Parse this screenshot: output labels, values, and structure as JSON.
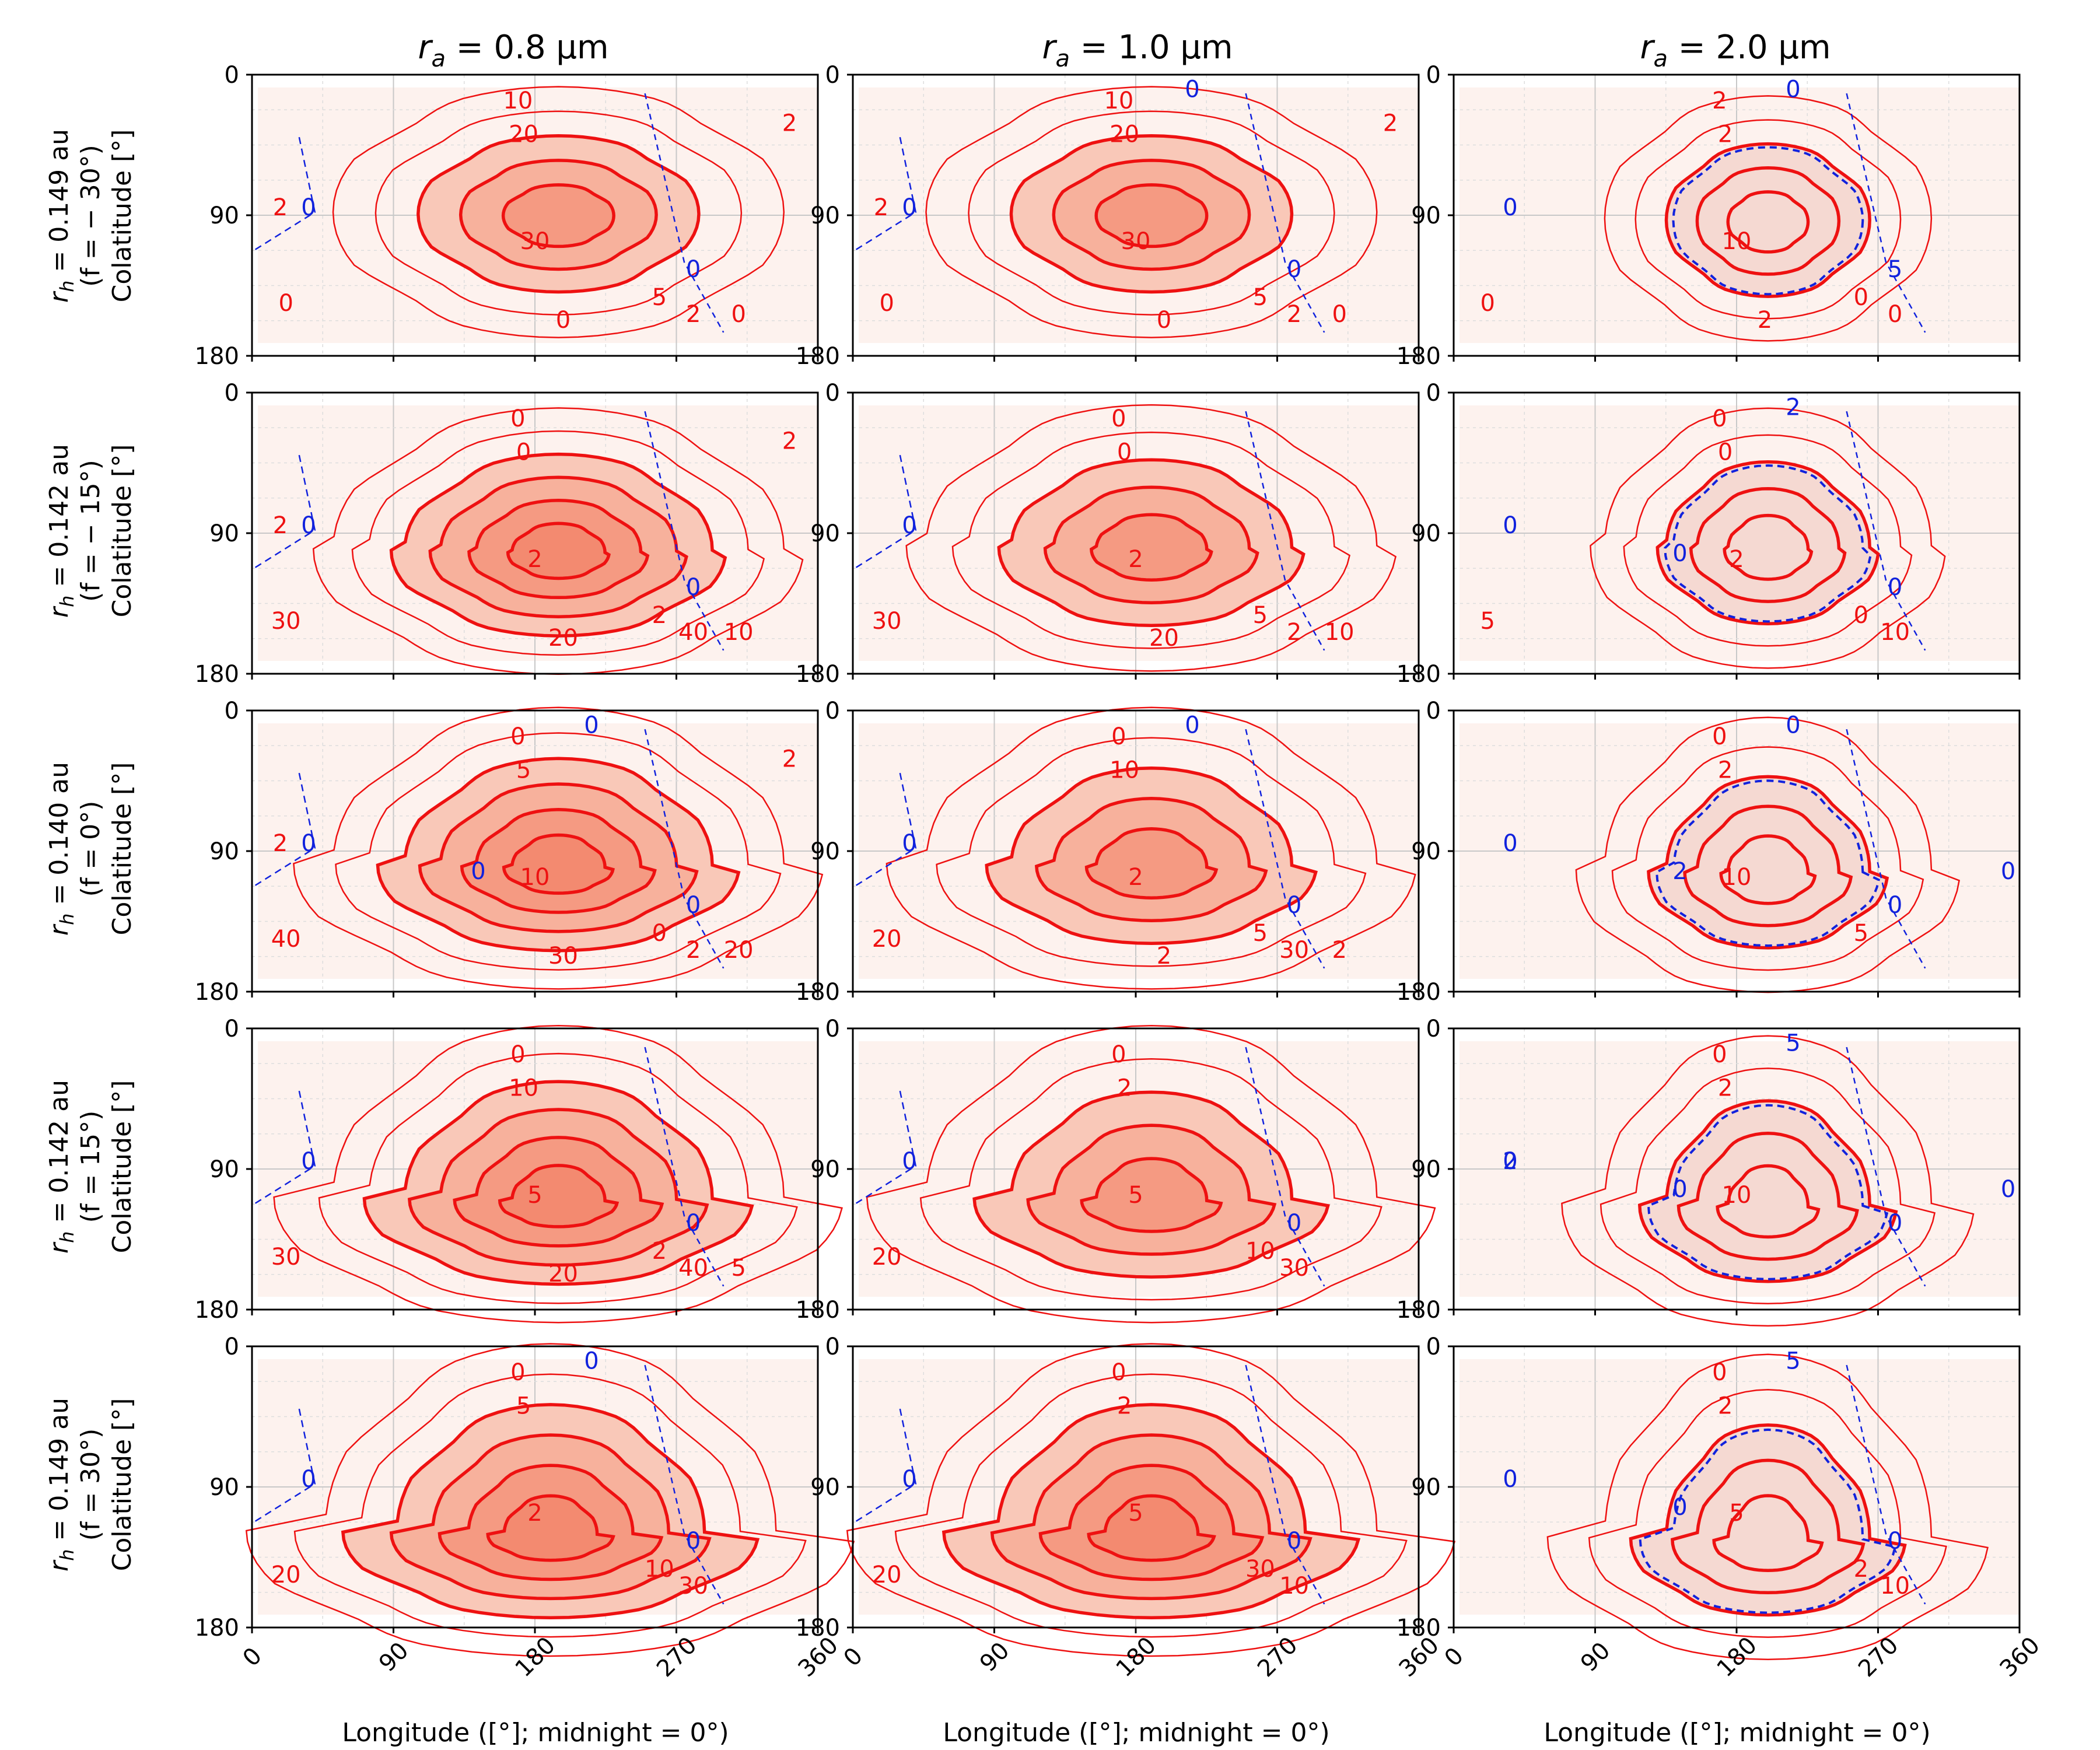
{
  "figure": {
    "col_titles": [
      {
        "pre": "r",
        "sub": "a",
        "rest": " = 0.8 μm"
      },
      {
        "pre": "r",
        "sub": "a",
        "rest": " = 1.0 μm"
      },
      {
        "pre": "r",
        "sub": "a",
        "rest": " = 2.0 μm"
      }
    ],
    "row_labels": [
      {
        "line1_pre": "r",
        "line1_sub": "h",
        "line1_rest": " = 0.149 au",
        "line2": "(f = − 30°)",
        "line3": "Colatitude [°]"
      },
      {
        "line1_pre": "r",
        "line1_sub": "h",
        "line1_rest": " = 0.142 au",
        "line2": "(f = − 15°)",
        "line3": "Colatitude [°]"
      },
      {
        "line1_pre": "r",
        "line1_sub": "h",
        "line1_rest": " = 0.140 au",
        "line2": "(f = 0°)",
        "line3": "Colatitude [°]"
      },
      {
        "line1_pre": "r",
        "line1_sub": "h",
        "line1_rest": " = 0.142 au",
        "line2": "(f = 15°)",
        "line3": "Colatitude [°]"
      },
      {
        "line1_pre": "r",
        "line1_sub": "h",
        "line1_rest": " = 0.149 au",
        "line2": "(f = 30°)",
        "line3": "Colatitude [°]"
      }
    ],
    "xlabel": "Longitude ([°]; midnight = 0°)",
    "colors": {
      "contour": "#ee1111",
      "negative": "#1122dd",
      "fill_base": "#fbe3dc"
    }
  },
  "chart_data": {
    "type": "contour",
    "xlim": [
      0,
      360
    ],
    "ylim": [
      180,
      0
    ],
    "xticks": [
      "0",
      "90",
      "180",
      "270",
      "360"
    ],
    "yticks": [
      "0",
      "90",
      "180"
    ],
    "grid": true,
    "panels": [
      {
        "row": 0,
        "col": 0,
        "center": [
          195,
          88
        ],
        "levels": [
          10,
          20,
          30
        ],
        "labels": [
          "10",
          "20",
          "30",
          "5",
          "2",
          "0",
          "0",
          "0",
          "2",
          "2"
        ],
        "negative_labels": [
          "0",
          "0"
        ]
      },
      {
        "row": 0,
        "col": 1,
        "center": [
          190,
          88
        ],
        "levels": [
          10,
          20,
          30
        ],
        "labels": [
          "10",
          "20",
          "30",
          "5",
          "2",
          "0",
          "0",
          "0",
          "2",
          "2"
        ],
        "negative_labels": [
          "0",
          "0",
          "0"
        ]
      },
      {
        "row": 0,
        "col": 2,
        "center": [
          200,
          92
        ],
        "levels": [
          2,
          5,
          10
        ],
        "labels": [
          "2",
          "2",
          "10",
          "0",
          "0",
          "0",
          "2"
        ],
        "negative_labels": [
          "0",
          "5",
          "0"
        ]
      },
      {
        "row": 1,
        "col": 0,
        "center": [
          195,
          100
        ],
        "levels": [
          10,
          20,
          30,
          40
        ],
        "labels": [
          "0",
          "0",
          "2",
          "2",
          "40",
          "30",
          "20",
          "10",
          "2",
          "2"
        ],
        "negative_labels": [
          "0",
          "0"
        ]
      },
      {
        "row": 1,
        "col": 1,
        "center": [
          190,
          98
        ],
        "levels": [
          10,
          20,
          30
        ],
        "labels": [
          "0",
          "0",
          "2",
          "5",
          "2",
          "30",
          "20",
          "10"
        ],
        "negative_labels": [
          "0"
        ]
      },
      {
        "row": 1,
        "col": 2,
        "center": [
          200,
          98
        ],
        "levels": [
          2,
          5,
          10
        ],
        "labels": [
          "0",
          "0",
          "2",
          "0",
          "10",
          "5"
        ],
        "negative_labels": [
          "0",
          "0",
          "2",
          "0"
        ]
      },
      {
        "row": 2,
        "col": 0,
        "center": [
          195,
          98
        ],
        "levels": [
          10,
          20,
          30,
          40
        ],
        "labels": [
          "0",
          "5",
          "10",
          "0",
          "2",
          "40",
          "30",
          "20",
          "2",
          "2"
        ],
        "negative_labels": [
          "0",
          "0",
          "0",
          "0"
        ]
      },
      {
        "row": 2,
        "col": 1,
        "center": [
          190,
          98
        ],
        "levels": [
          10,
          20,
          30
        ],
        "labels": [
          "0",
          "10",
          "2",
          "5",
          "30",
          "20",
          "2",
          "2"
        ],
        "negative_labels": [
          "0",
          "0",
          "0"
        ]
      },
      {
        "row": 2,
        "col": 2,
        "center": [
          200,
          102
        ],
        "levels": [
          2,
          5,
          10
        ],
        "labels": [
          "0",
          "2",
          "10",
          "5"
        ],
        "negative_labels": [
          "0",
          "0",
          "0",
          "2",
          "0"
        ]
      },
      {
        "row": 3,
        "col": 0,
        "center": [
          195,
          108
        ],
        "levels": [
          10,
          20,
          30,
          40
        ],
        "labels": [
          "0",
          "10",
          "5",
          "2",
          "40",
          "30",
          "20",
          "5"
        ],
        "negative_labels": [
          "0",
          "0"
        ]
      },
      {
        "row": 3,
        "col": 1,
        "center": [
          190,
          108
        ],
        "levels": [
          10,
          20,
          30
        ],
        "labels": [
          "0",
          "2",
          "5",
          "10",
          "30",
          "20"
        ],
        "negative_labels": [
          "0",
          "0"
        ]
      },
      {
        "row": 3,
        "col": 2,
        "center": [
          200,
          112
        ],
        "levels": [
          2,
          5,
          10
        ],
        "labels": [
          "0",
          "2",
          "10"
        ],
        "negative_labels": [
          "2",
          "0",
          "5",
          "0",
          "0",
          "0"
        ]
      },
      {
        "row": 4,
        "col": 0,
        "center": [
          190,
          118
        ],
        "levels": [
          5,
          10,
          20,
          30
        ],
        "labels": [
          "0",
          "5",
          "2",
          "10",
          "30",
          "20"
        ],
        "negative_labels": [
          "0",
          "0",
          "0"
        ]
      },
      {
        "row": 4,
        "col": 1,
        "center": [
          190,
          118
        ],
        "levels": [
          5,
          10,
          20,
          30
        ],
        "labels": [
          "0",
          "2",
          "5",
          "30",
          "10",
          "20"
        ],
        "negative_labels": [
          "0",
          "0"
        ]
      },
      {
        "row": 4,
        "col": 2,
        "center": [
          200,
          122
        ],
        "levels": [
          2,
          5,
          10
        ],
        "labels": [
          "0",
          "2",
          "5",
          "2",
          "10"
        ],
        "negative_labels": [
          "0",
          "0",
          "5",
          "0"
        ]
      }
    ]
  }
}
